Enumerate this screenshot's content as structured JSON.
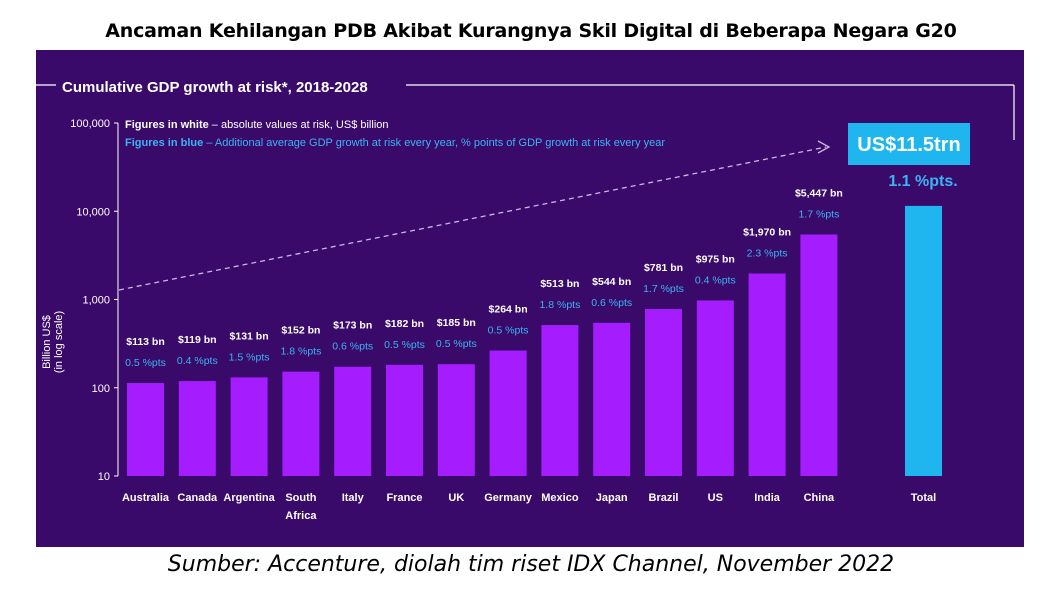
{
  "header": {
    "title": "Ancaman Kehilangan PDB Akibat Kurangnya Skil Digital di Beberapa Negara G20"
  },
  "footer": {
    "source": "Sumber: Accenture, diolah tim riset IDX Channel, November 2022"
  },
  "colors": {
    "panel_bg": "#3a0a6b",
    "bar": "#a51dff",
    "total_bar": "#1fb6f0",
    "blue_text": "#3ab4f2",
    "white": "#ffffff",
    "callout_box": "#1fb6f0"
  },
  "chart_data": {
    "type": "bar",
    "title": "Cumulative GDP growth at risk*, 2018-2028",
    "ylabel": "Billion US$ (in log scale)",
    "ylabel_line1": "Billion US$",
    "ylabel_line2": "(in log scale)",
    "yscale": "log",
    "ylim": [
      10,
      100000
    ],
    "yticks": [
      10,
      100,
      1000,
      10000,
      100000
    ],
    "ytick_labels": [
      "10",
      "100",
      "1,000",
      "10,000",
      "100,000"
    ],
    "legend": {
      "white_bold": "Figures in white",
      "white_rest": " – absolute values at risk, US$ billion",
      "blue_bold": "Figures in blue",
      "blue_rest": " – Additional average GDP growth at risk every year, % points of GDP growth at risk every year"
    },
    "categories": [
      "Australia",
      "Canada",
      "Argentina",
      "South Africa",
      "Italy",
      "France",
      "UK",
      "Germany",
      "Mexico",
      "Japan",
      "Brazil",
      "US",
      "India",
      "China"
    ],
    "category_lines": [
      [
        "Australia"
      ],
      [
        "Canada"
      ],
      [
        "Argentina"
      ],
      [
        "South",
        "Africa"
      ],
      [
        "Italy"
      ],
      [
        "France"
      ],
      [
        "UK"
      ],
      [
        "Germany"
      ],
      [
        "Mexico"
      ],
      [
        "Japan"
      ],
      [
        "Brazil"
      ],
      [
        "US"
      ],
      [
        "India"
      ],
      [
        "China"
      ]
    ],
    "values": [
      113,
      119,
      131,
      152,
      173,
      182,
      185,
      264,
      513,
      544,
      781,
      975,
      1970,
      5447
    ],
    "value_labels": [
      "$113 bn",
      "$119 bn",
      "$131 bn",
      "$152 bn",
      "$173 bn",
      "$182 bn",
      "$185 bn",
      "$264 bn",
      "$513 bn",
      "$544 bn",
      "$781 bn",
      "$975 bn",
      "$1,970 bn",
      "$5,447 bn"
    ],
    "pct_labels": [
      "0.5 %pts",
      "0.4 %pts",
      "1.5 %pts",
      "1.8 %pts",
      "0.6 %pts",
      "0.5 %pts",
      "0.5 %pts",
      "0.5 %pts",
      "1.8 %pts",
      "0.6 %pts",
      "1.7 %pts",
      "0.4 %pts",
      "2.3 %pts",
      "1.7 %pts"
    ],
    "total": {
      "category": "Total",
      "value": 11500,
      "value_label": "US$11.5trn",
      "pct_label": "1.1 %pts."
    }
  }
}
